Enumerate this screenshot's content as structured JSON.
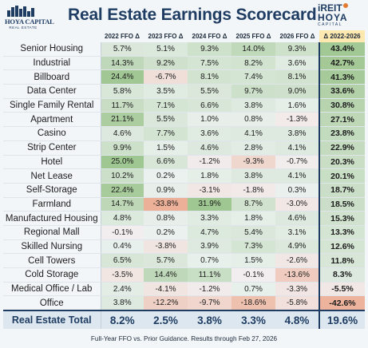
{
  "header": {
    "title": "Real Estate Earnings Scorecard",
    "logo_left_line1": "HOYA CAPITAL",
    "logo_left_line2": "REAL ESTATE",
    "logo_right_line1": "iREIT",
    "logo_right_line2": "HOYA",
    "logo_right_line3": "CAPITAL"
  },
  "chart_data": {
    "type": "table",
    "columns": [
      "2022 FFO Δ",
      "2023 FFO Δ",
      "2024 FFO Δ",
      "2025 FFO Δ",
      "2026 FFO Δ",
      "Δ 2022-2026"
    ],
    "rows": [
      {
        "name": "Senior Housing",
        "values": [
          "5.7%",
          "5.1%",
          "9.3%",
          "14.0%",
          "9.3%",
          "43.4%"
        ]
      },
      {
        "name": "Industrial",
        "values": [
          "14.3%",
          "9.2%",
          "7.5%",
          "8.2%",
          "3.6%",
          "42.7%"
        ]
      },
      {
        "name": "Billboard",
        "values": [
          "24.4%",
          "-6.7%",
          "8.1%",
          "7.4%",
          "8.1%",
          "41.3%"
        ]
      },
      {
        "name": "Data Center",
        "values": [
          "5.8%",
          "3.5%",
          "5.5%",
          "9.7%",
          "9.0%",
          "33.6%"
        ]
      },
      {
        "name": "Single Family Rental",
        "values": [
          "11.7%",
          "7.1%",
          "6.6%",
          "3.8%",
          "1.6%",
          "30.8%"
        ]
      },
      {
        "name": "Apartment",
        "values": [
          "21.1%",
          "5.5%",
          "1.0%",
          "0.8%",
          "-1.3%",
          "27.1%"
        ]
      },
      {
        "name": "Casino",
        "values": [
          "4.6%",
          "7.7%",
          "3.6%",
          "4.1%",
          "3.8%",
          "23.8%"
        ]
      },
      {
        "name": "Strip Center",
        "values": [
          "9.9%",
          "1.5%",
          "4.6%",
          "2.8%",
          "4.1%",
          "22.9%"
        ]
      },
      {
        "name": "Hotel",
        "values": [
          "25.0%",
          "6.6%",
          "-1.2%",
          "-9.3%",
          "-0.7%",
          "20.3%"
        ]
      },
      {
        "name": "Net Lease",
        "values": [
          "10.2%",
          "0.2%",
          "1.8%",
          "3.8%",
          "4.1%",
          "20.1%"
        ]
      },
      {
        "name": "Self-Storage",
        "values": [
          "22.4%",
          "0.9%",
          "-3.1%",
          "-1.8%",
          "0.3%",
          "18.7%"
        ]
      },
      {
        "name": "Farmland",
        "values": [
          "14.7%",
          "-33.8%",
          "31.9%",
          "8.7%",
          "-3.0%",
          "18.5%"
        ]
      },
      {
        "name": "Manufactured Housing",
        "values": [
          "4.8%",
          "0.8%",
          "3.3%",
          "1.8%",
          "4.6%",
          "15.3%"
        ]
      },
      {
        "name": "Regional Mall",
        "values": [
          "-0.1%",
          "0.2%",
          "4.7%",
          "5.4%",
          "3.1%",
          "13.3%"
        ]
      },
      {
        "name": "Skilled Nursing",
        "values": [
          "0.4%",
          "-3.8%",
          "3.9%",
          "7.3%",
          "4.9%",
          "12.6%"
        ]
      },
      {
        "name": "Cell Towers",
        "values": [
          "6.5%",
          "5.7%",
          "0.7%",
          "1.5%",
          "-2.6%",
          "11.8%"
        ]
      },
      {
        "name": "Cold Storage",
        "values": [
          "-3.5%",
          "14.4%",
          "11.1%",
          "-0.1%",
          "-13.6%",
          "8.3%"
        ]
      },
      {
        "name": "Medical Office / Lab",
        "values": [
          "2.4%",
          "-4.1%",
          "-1.2%",
          "0.7%",
          "-3.3%",
          "-5.5%"
        ]
      },
      {
        "name": "Office",
        "values": [
          "3.8%",
          "-12.2%",
          "-9.7%",
          "-18.6%",
          "-5.8%",
          "-42.6%"
        ]
      }
    ],
    "total": {
      "name": "Real Estate Total",
      "values": [
        "8.2%",
        "2.5%",
        "3.8%",
        "3.3%",
        "4.8%",
        "19.6%"
      ]
    }
  },
  "footer": "Full-Year FFO vs. Prior Guidance. Results through Feb 27, 2026",
  "colors": {
    "navy": "#1f3d63",
    "positive": "#6aa84f",
    "negative": "#e8835a",
    "header_accent": "#fde8b0"
  }
}
